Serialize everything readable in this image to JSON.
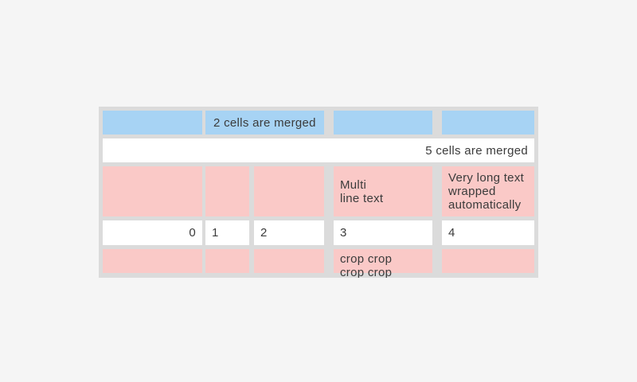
{
  "page": {
    "colors": {
      "page-bg": "#f5f5f5",
      "border": "#dbdbdb",
      "blue": "#a7d3f4",
      "pink": "#fac9c7",
      "white": "#ffffff",
      "text": "#3b3b3b"
    }
  },
  "table": {
    "rows": [
      {
        "type": "blue-header",
        "cells": [
          {
            "text": ""
          },
          {
            "text": "2 cells are merged",
            "merged": 2
          },
          {
            "text": ""
          },
          {
            "text": ""
          }
        ]
      },
      {
        "type": "white-merged",
        "cells": [
          {
            "text": "5 cells are merged",
            "merged": 5,
            "align": "right"
          }
        ]
      },
      {
        "type": "pink",
        "cells": [
          {
            "text": ""
          },
          {
            "text": ""
          },
          {
            "text": ""
          },
          {
            "text": "Multi\nline text"
          },
          {
            "text": "Very long text\nwrapped\nautomatically"
          }
        ]
      },
      {
        "type": "white-numbers",
        "cells": [
          {
            "text": "0",
            "align": "right"
          },
          {
            "text": "1"
          },
          {
            "text": "2"
          },
          {
            "text": "3"
          },
          {
            "text": "4"
          }
        ]
      },
      {
        "type": "pink-cropped",
        "cells": [
          {
            "text": ""
          },
          {
            "text": ""
          },
          {
            "text": ""
          },
          {
            "text": "crop crop\ncrop crop",
            "cropped": true
          },
          {
            "text": ""
          }
        ]
      }
    ]
  }
}
